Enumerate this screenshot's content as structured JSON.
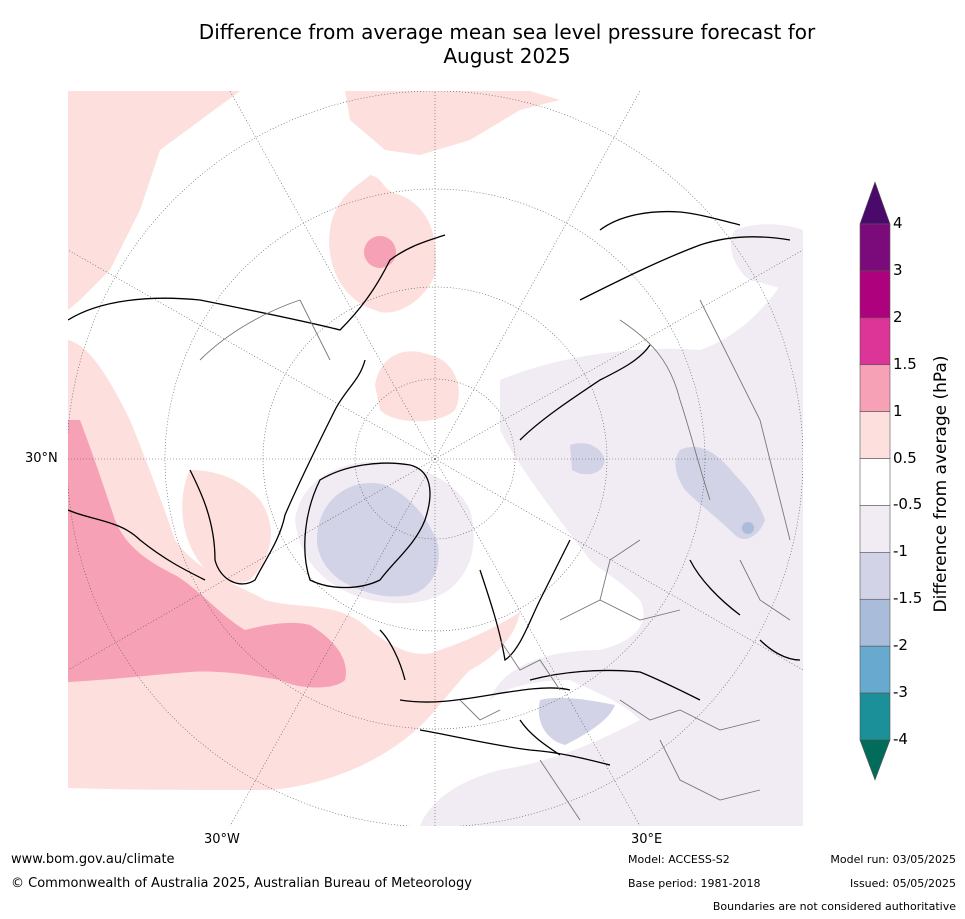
{
  "title_line1": "Difference from average mean sea level pressure forecast for",
  "title_line2": "August 2025",
  "map": {
    "projection": "north polar stereographic",
    "labels": {
      "lat30n": "30°N",
      "lon30w": "30°W",
      "lon30e": "30°E"
    },
    "regions": [
      {
        "name": "north-atlantic-high",
        "level": "1 to 1.5",
        "color": "#f7a1b7"
      },
      {
        "name": "atlantic-ridge",
        "level": "0.5 to 1",
        "color": "#fddfdd"
      },
      {
        "name": "greenland-low",
        "level": "-1.5 to -1",
        "color": "#d2d3e6"
      },
      {
        "name": "eurasia-low",
        "level": "-1 to -0.5",
        "color": "#f1ecf4"
      },
      {
        "name": "pacific-positive",
        "level": "0.5 to 1",
        "color": "#fddfdd"
      },
      {
        "name": "bering-high",
        "level": "1 to 1.5",
        "color": "#f7a1b7"
      }
    ]
  },
  "colorbar": {
    "title": "Difference from average (hPa)",
    "ticks": [
      "4",
      "3",
      "2",
      "1.5",
      "1",
      "0.5",
      "-0.5",
      "-1",
      "-1.5",
      "-2",
      "-3",
      "-4"
    ],
    "colors": [
      "#4a0a6b",
      "#7b0b7a",
      "#ae017e",
      "#dd3497",
      "#f7a1b7",
      "#fddfdd",
      "#ffffff",
      "#f1ecf4",
      "#d2d3e6",
      "#a9bcda",
      "#67a9cf",
      "#1c9099",
      "#016c59"
    ]
  },
  "footer": {
    "website": "www.bom.gov.au/climate",
    "copyright": "© Commonwealth of Australia 2025, Australian Bureau of Meteorology",
    "model": "Model: ACCESS-S2",
    "base_period": "Base period: 1981-2018",
    "model_run": "Model run: 03/05/2025",
    "issued": "Issued: 05/05/2025",
    "disclaimer": "Boundaries are not considered authoritative"
  }
}
